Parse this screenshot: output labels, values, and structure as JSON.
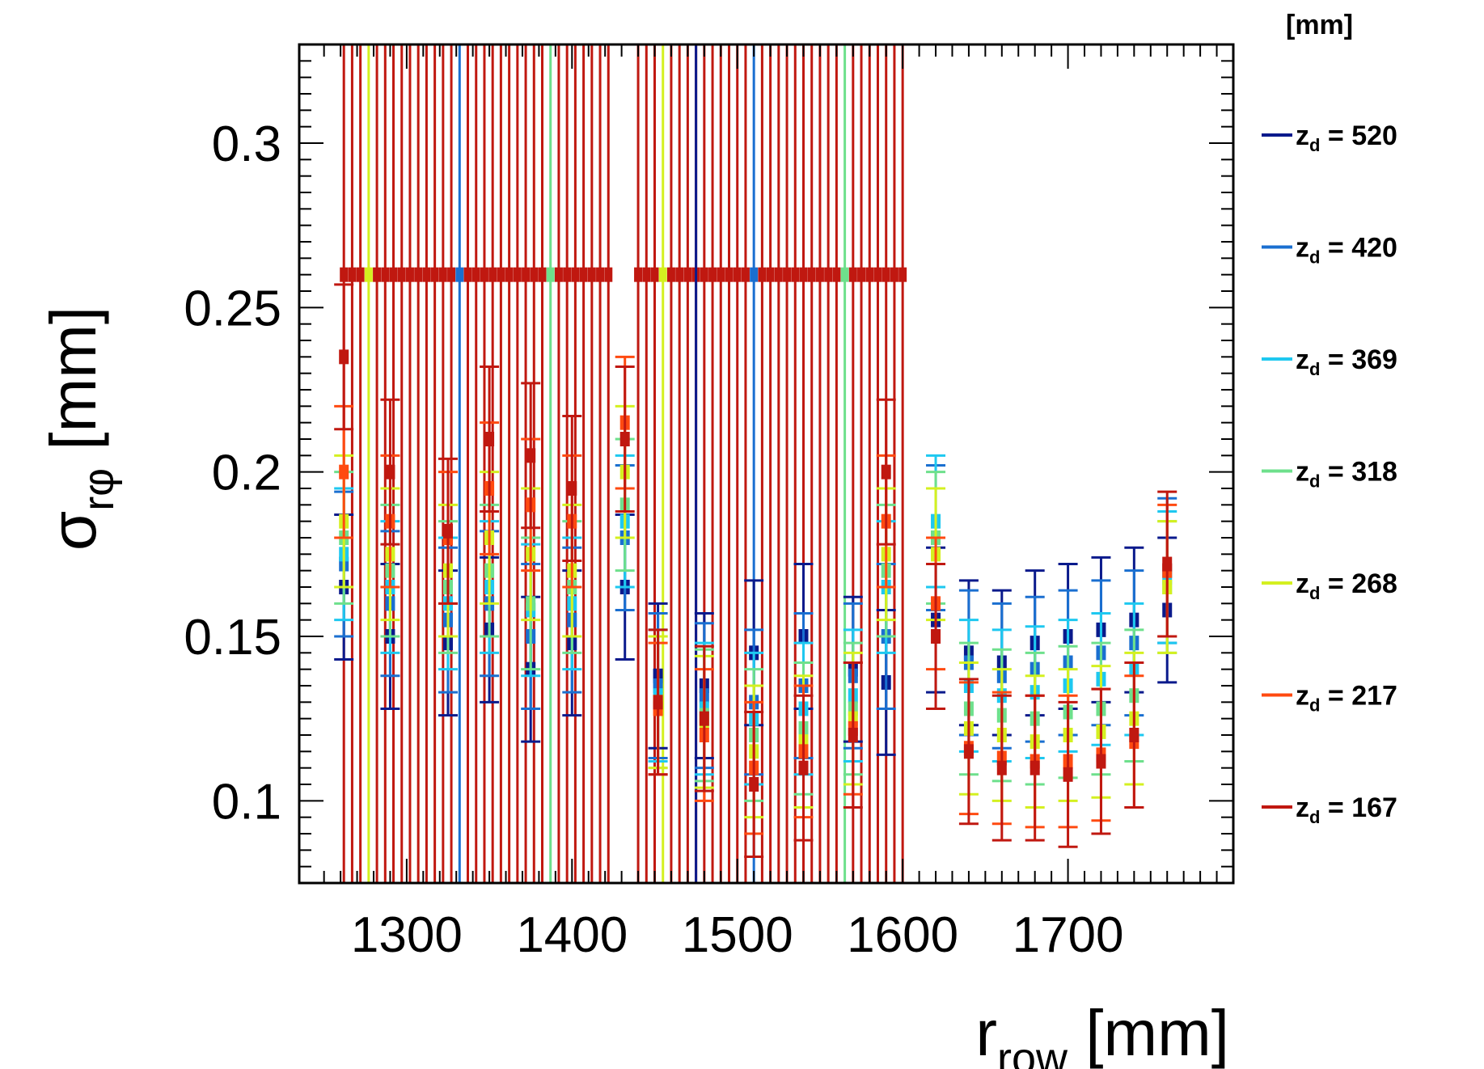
{
  "chart_data": {
    "type": "scatter",
    "title": "",
    "xlabel_main": "r",
    "xlabel_sub": "row",
    "xlabel_unit": " [mm]",
    "ylabel_main": "σ",
    "ylabel_sub": "rφ",
    "ylabel_unit": " [mm]",
    "xlim": [
      1235,
      1800
    ],
    "ylim": [
      0.075,
      0.33
    ],
    "x_ticks": [
      1300,
      1400,
      1500,
      1600,
      1700
    ],
    "x_tick_labels": [
      "1300",
      "1400",
      "1500",
      "1600",
      "1700"
    ],
    "y_ticks": [
      0.1,
      0.15,
      0.2,
      0.25,
      0.3
    ],
    "y_tick_labels": [
      "0.1",
      "0.15",
      "0.2",
      "0.25",
      "0.3"
    ],
    "grid": false,
    "legend": {
      "position": "right",
      "header": "[mm]",
      "label_prefix": "z",
      "label_sub": "d",
      "label_infix": " = "
    },
    "series": [
      {
        "name": "520",
        "color": "#0a1a8c",
        "err": 0.022,
        "x": [
          1262,
          1290,
          1325,
          1350,
          1375,
          1400,
          1432,
          1452,
          1480,
          1510,
          1540,
          1570,
          1590,
          1620,
          1640,
          1660,
          1680,
          1700,
          1720,
          1740,
          1760
        ],
        "y": [
          0.165,
          0.15,
          0.148,
          0.152,
          0.14,
          0.148,
          0.165,
          0.138,
          0.135,
          0.145,
          0.15,
          0.14,
          0.136,
          0.155,
          0.145,
          0.142,
          0.148,
          0.15,
          0.152,
          0.155,
          0.158
        ]
      },
      {
        "name": "420",
        "color": "#1a6fd0",
        "err": 0.022,
        "x": [
          1262,
          1290,
          1325,
          1350,
          1375,
          1400,
          1432,
          1452,
          1480,
          1510,
          1540,
          1570,
          1590,
          1620,
          1640,
          1660,
          1680,
          1700,
          1720,
          1740,
          1760
        ],
        "y": [
          0.172,
          0.16,
          0.155,
          0.16,
          0.15,
          0.155,
          0.18,
          0.135,
          0.132,
          0.13,
          0.135,
          0.138,
          0.15,
          0.18,
          0.142,
          0.138,
          0.14,
          0.142,
          0.145,
          0.148,
          0.17
        ]
      },
      {
        "name": "369",
        "color": "#1ec8f0",
        "err": 0.02,
        "x": [
          1262,
          1290,
          1325,
          1350,
          1375,
          1400,
          1432,
          1452,
          1480,
          1510,
          1540,
          1570,
          1590,
          1620,
          1640,
          1660,
          1680,
          1700,
          1720,
          1740,
          1760
        ],
        "y": [
          0.175,
          0.165,
          0.16,
          0.165,
          0.158,
          0.16,
          0.185,
          0.132,
          0.128,
          0.125,
          0.128,
          0.132,
          0.165,
          0.185,
          0.135,
          0.132,
          0.133,
          0.135,
          0.137,
          0.14,
          0.168
        ]
      },
      {
        "name": "318",
        "color": "#6ee08c",
        "err": 0.02,
        "x": [
          1262,
          1290,
          1325,
          1350,
          1375,
          1400,
          1432,
          1452,
          1480,
          1510,
          1540,
          1570,
          1590,
          1620,
          1640,
          1660,
          1680,
          1700,
          1720,
          1740,
          1760
        ],
        "y": [
          0.18,
          0.17,
          0.165,
          0.17,
          0.16,
          0.165,
          0.19,
          0.13,
          0.126,
          0.12,
          0.122,
          0.128,
          0.17,
          0.18,
          0.128,
          0.126,
          0.125,
          0.127,
          0.128,
          0.132,
          0.165
        ]
      },
      {
        "name": "268",
        "color": "#d4f020",
        "err": 0.02,
        "x": [
          1262,
          1290,
          1325,
          1350,
          1375,
          1400,
          1432,
          1452,
          1480,
          1510,
          1540,
          1570,
          1590,
          1620,
          1640,
          1660,
          1680,
          1700,
          1720,
          1740,
          1760
        ],
        "y": [
          0.185,
          0.175,
          0.17,
          0.18,
          0.175,
          0.17,
          0.2,
          0.13,
          0.124,
          0.115,
          0.118,
          0.125,
          0.175,
          0.175,
          0.122,
          0.12,
          0.118,
          0.12,
          0.121,
          0.125,
          0.165
        ]
      },
      {
        "name": "217",
        "color": "#ff4a10",
        "err": 0.02,
        "x": [
          1262,
          1290,
          1325,
          1350,
          1375,
          1400,
          1432,
          1452,
          1480,
          1510,
          1540,
          1570,
          1590,
          1620,
          1640,
          1660,
          1680,
          1700,
          1720,
          1740,
          1760
        ],
        "y": [
          0.2,
          0.185,
          0.18,
          0.195,
          0.19,
          0.185,
          0.215,
          0.128,
          0.12,
          0.11,
          0.115,
          0.122,
          0.185,
          0.16,
          0.116,
          0.113,
          0.112,
          0.112,
          0.114,
          0.118,
          0.17
        ]
      },
      {
        "name": "167",
        "color": "#c01810",
        "err": 0.022,
        "x": [
          1262,
          1290,
          1325,
          1350,
          1375,
          1400,
          1432,
          1452,
          1480,
          1510,
          1540,
          1570,
          1590,
          1620,
          1640,
          1660,
          1680,
          1700,
          1720,
          1740,
          1760
        ],
        "y": [
          0.235,
          0.2,
          0.182,
          0.21,
          0.205,
          0.195,
          0.21,
          0.13,
          0.125,
          0.105,
          0.11,
          0.12,
          0.2,
          0.15,
          0.115,
          0.11,
          0.11,
          0.108,
          0.112,
          0.12,
          0.172
        ]
      }
    ],
    "saturated_points": {
      "y_value": 0.26,
      "x_ranges": [
        [
          1262,
          1425
        ],
        [
          1440,
          1600
        ]
      ],
      "step": 5,
      "color": "#c01810",
      "accent_colors": [
        "#d4f020",
        "#6ee08c",
        "#1a6fd0"
      ],
      "blue_line_x": 1475
    }
  }
}
